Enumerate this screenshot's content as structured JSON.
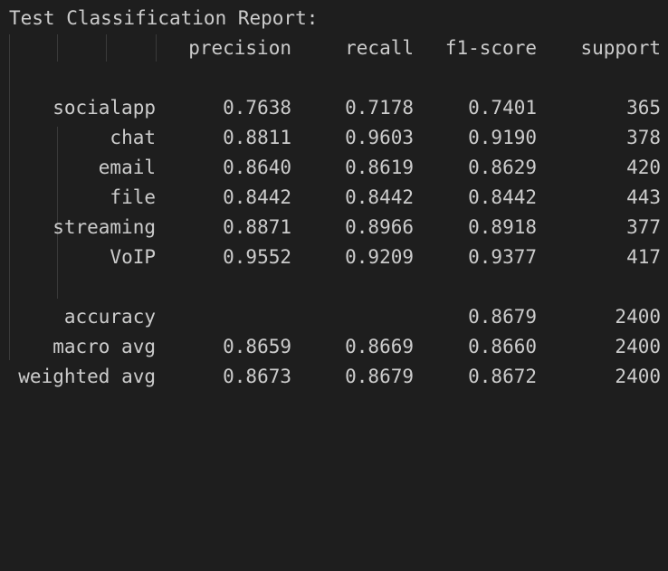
{
  "title": "Test Classification Report:",
  "columns": [
    "precision",
    "recall",
    "f1-score",
    "support"
  ],
  "rows": [
    {
      "label": "socialapp",
      "precision": "0.7638",
      "recall": "0.7178",
      "f1": "0.7401",
      "support": "365"
    },
    {
      "label": "chat",
      "precision": "0.8811",
      "recall": "0.9603",
      "f1": "0.9190",
      "support": "378"
    },
    {
      "label": "email",
      "precision": "0.8640",
      "recall": "0.8619",
      "f1": "0.8629",
      "support": "420"
    },
    {
      "label": "file",
      "precision": "0.8442",
      "recall": "0.8442",
      "f1": "0.8442",
      "support": "443"
    },
    {
      "label": "streaming",
      "precision": "0.8871",
      "recall": "0.8966",
      "f1": "0.8918",
      "support": "377"
    },
    {
      "label": "VoIP",
      "precision": "0.9552",
      "recall": "0.9209",
      "f1": "0.9377",
      "support": "417"
    }
  ],
  "summary": [
    {
      "label": "accuracy",
      "precision": "",
      "recall": "",
      "f1": "0.8679",
      "support": "2400"
    },
    {
      "label": "macro avg",
      "precision": "0.8659",
      "recall": "0.8669",
      "f1": "0.8660",
      "support": "2400"
    },
    {
      "label": "weighted avg",
      "precision": "0.8673",
      "recall": "0.8679",
      "f1": "0.8672",
      "support": "2400"
    }
  ],
  "colors": {
    "background": "#1e1e1e",
    "text": "#cccccc",
    "guide": "#3a3a3a"
  }
}
